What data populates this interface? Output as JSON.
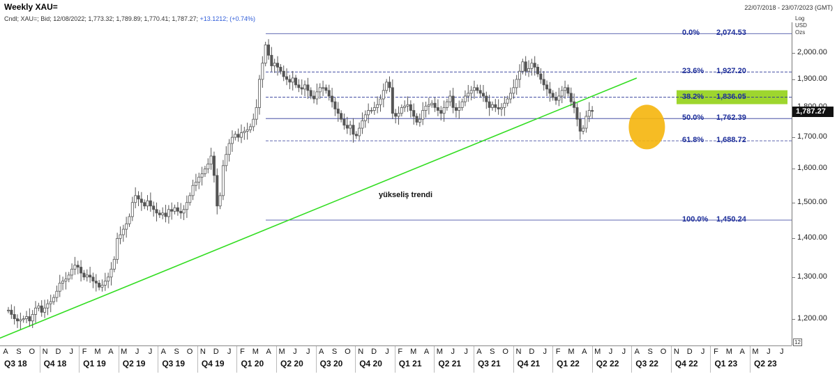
{
  "header": {
    "title": "Weekly XAU=",
    "date_range": "22/07/2018 - 23/07/2023 (GMT)",
    "info_prefix": "Cndl; XAU=; Bid; 12/08/2022; 1,773.32; 1,789.89; 1,770.41; 1,787.27;",
    "info_change": "+13.1212; (+0.74%)",
    "scale_log": "Log",
    "scale_ccy": "USD",
    "scale_unit": "Ozs",
    "last_price": "1,787.27",
    "small_box": "12"
  },
  "colors": {
    "fib_line": "#2a3596",
    "fib_text": "#1e2f9a",
    "trendline": "#33dd22",
    "fib_highlight": "#9ed62e",
    "circle": "#f5b50c",
    "candle": "#555555",
    "last_price_bg": "#111111"
  },
  "annotations": {
    "trend_label": "yükseliş trendi"
  },
  "chart_data": {
    "type": "candlestick",
    "scale": "log",
    "ylim": [
      1140,
      2120
    ],
    "yticks": [
      {
        "value": 1200,
        "label": "1,200.00"
      },
      {
        "value": 1300,
        "label": "1,300.00"
      },
      {
        "value": 1400,
        "label": "1,400.00"
      },
      {
        "value": 1500,
        "label": "1,500.00"
      },
      {
        "value": 1600,
        "label": "1,600.00"
      },
      {
        "value": 1700,
        "label": "1,700.00"
      },
      {
        "value": 1800,
        "label": "1,800.00"
      },
      {
        "value": 1900,
        "label": "1,900.00"
      },
      {
        "value": 2000,
        "label": "2,000.00"
      }
    ],
    "months": [
      "A",
      "S",
      "O",
      "N",
      "D",
      "J",
      "F",
      "M",
      "A",
      "M",
      "J",
      "J",
      "A",
      "S",
      "O",
      "N",
      "D",
      "J",
      "F",
      "M",
      "A",
      "M",
      "J",
      "J",
      "A",
      "S",
      "O",
      "N",
      "D",
      "J",
      "F",
      "M",
      "A",
      "M",
      "J",
      "J",
      "A",
      "S",
      "O",
      "N",
      "D",
      "J",
      "F",
      "M",
      "A",
      "M",
      "J",
      "J",
      "A",
      "S",
      "O",
      "N",
      "D",
      "J",
      "F",
      "M",
      "A",
      "M",
      "J",
      "J"
    ],
    "quarters": [
      "Q3 18",
      "Q4 18",
      "Q1 19",
      "Q2 19",
      "Q3 19",
      "Q4 19",
      "Q1 20",
      "Q2 20",
      "Q3 20",
      "Q4 20",
      "Q1 21",
      "Q2 21",
      "Q3 21",
      "Q4 21",
      "Q1 22",
      "Q2 22",
      "Q3 22",
      "Q4 22",
      "Q1 23",
      "Q2 23"
    ],
    "fibonacci": [
      {
        "level": "0.0%",
        "price": 2074.53,
        "label": "2,074.53",
        "style": "solid"
      },
      {
        "level": "23.6%",
        "price": 1927.2,
        "label": "1,927.20",
        "style": "dashed"
      },
      {
        "level": "38.2%",
        "price": 1836.05,
        "label": "1,836.05",
        "style": "dashed",
        "highlight": true
      },
      {
        "level": "50.0%",
        "price": 1762.39,
        "label": "1,762.39",
        "style": "solid"
      },
      {
        "level": "61.8%",
        "price": 1688.72,
        "label": "1,688.72",
        "style": "dashed"
      },
      {
        "level": "100.0%",
        "price": 1450.24,
        "label": "1,450.24",
        "style": "solid"
      }
    ],
    "trendline": {
      "start": [
        "2018-07-22",
        1155
      ],
      "end": [
        "2022-07-15",
        1905
      ]
    },
    "highlight_circle": {
      "center": [
        "2022-08-01",
        1720
      ]
    },
    "weekly_close": [
      1220,
      1210,
      1200,
      1195,
      1198,
      1200,
      1205,
      1195,
      1210,
      1225,
      1230,
      1215,
      1225,
      1235,
      1240,
      1250,
      1265,
      1285,
      1290,
      1295,
      1305,
      1320,
      1330,
      1325,
      1310,
      1300,
      1305,
      1300,
      1290,
      1285,
      1275,
      1280,
      1290,
      1300,
      1320,
      1345,
      1400,
      1410,
      1425,
      1440,
      1460,
      1500,
      1520,
      1510,
      1500,
      1490,
      1505,
      1490,
      1480,
      1470,
      1465,
      1470,
      1460,
      1480,
      1475,
      1485,
      1475,
      1470,
      1480,
      1500,
      1520,
      1550,
      1560,
      1575,
      1585,
      1600,
      1615,
      1640,
      1580,
      1490,
      1520,
      1610,
      1645,
      1680,
      1700,
      1710,
      1700,
      1715,
      1720,
      1725,
      1735,
      1760,
      1800,
      1900,
      1960,
      2030,
      1990,
      1950,
      1960,
      1945,
      1930,
      1910,
      1900,
      1890,
      1905,
      1880,
      1870,
      1865,
      1880,
      1860,
      1840,
      1830,
      1855,
      1870,
      1870,
      1860,
      1840,
      1820,
      1795,
      1780,
      1760,
      1740,
      1730,
      1740,
      1710,
      1705,
      1730,
      1755,
      1775,
      1790,
      1790,
      1800,
      1810,
      1830,
      1860,
      1890,
      1870,
      1780,
      1770,
      1780,
      1800,
      1805,
      1810,
      1790,
      1770,
      1750,
      1760,
      1790,
      1805,
      1810,
      1815,
      1800,
      1790,
      1780,
      1800,
      1820,
      1840,
      1800,
      1790,
      1800,
      1820,
      1840,
      1850,
      1860,
      1870,
      1860,
      1850,
      1840,
      1820,
      1800,
      1810,
      1800,
      1795,
      1800,
      1815,
      1830,
      1850,
      1870,
      1900,
      1930,
      1965,
      1930,
      1940,
      1960,
      1945,
      1920,
      1900,
      1880,
      1865,
      1850,
      1835,
      1825,
      1840,
      1860,
      1870,
      1850,
      1820,
      1800,
      1760,
      1720,
      1730,
      1770,
      1790,
      1787
    ]
  }
}
